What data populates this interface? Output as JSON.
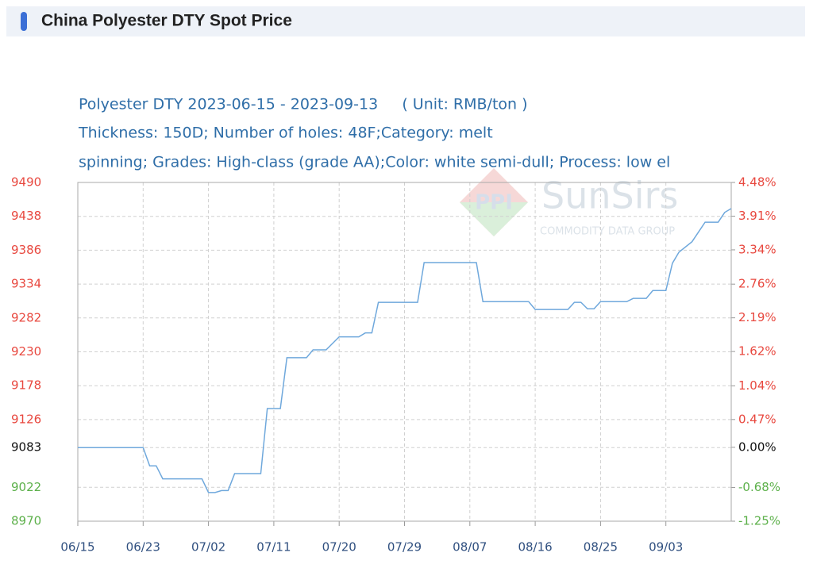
{
  "header": {
    "title": "China Polyester DTY Spot Price"
  },
  "chart_data": {
    "type": "line",
    "subtitle": [
      "Polyester DTY 2023-06-15 - 2023-09-13     ( Unit: RMB/ton )",
      "Thickness: 150D; Number of holes: 48F;Category: melt",
      "spinning; Grades: High-class (grade AA);Color: white semi-dull; Process: low el"
    ],
    "watermark": {
      "logo": "PPI",
      "name": "SunSirs",
      "tagline": "COMMODITY DATA GROUP"
    },
    "xlim": [
      0,
      100
    ],
    "xticks": [
      {
        "value": 0,
        "label": "06/15"
      },
      {
        "value": 10,
        "label": "06/23"
      },
      {
        "value": 20,
        "label": "07/02"
      },
      {
        "value": 30,
        "label": "07/11"
      },
      {
        "value": 40,
        "label": "07/20"
      },
      {
        "value": 50,
        "label": "07/29"
      },
      {
        "value": 60,
        "label": "08/07"
      },
      {
        "value": 70,
        "label": "08/16"
      },
      {
        "value": 80,
        "label": "08/25"
      },
      {
        "value": 90,
        "label": "09/03"
      }
    ],
    "ylim": [
      8970,
      9490
    ],
    "yticks": [
      9490,
      9438,
      9386,
      9334,
      9282,
      9230,
      9178,
      9126,
      9083,
      9022,
      8970
    ],
    "y2lim": [
      -1.25,
      4.48
    ],
    "y2ticks": [
      {
        "value": 4.48,
        "label": "4.48%"
      },
      {
        "value": 3.91,
        "label": "3.91%"
      },
      {
        "value": 3.34,
        "label": "3.34%"
      },
      {
        "value": 2.76,
        "label": "2.76%"
      },
      {
        "value": 2.19,
        "label": "2.19%"
      },
      {
        "value": 1.62,
        "label": "1.62%"
      },
      {
        "value": 1.04,
        "label": "1.04%"
      },
      {
        "value": 0.47,
        "label": "0.47%"
      },
      {
        "value": 0,
        "label": "0.00%"
      },
      {
        "value": -0.68,
        "label": "-0.68%"
      },
      {
        "value": -1.25,
        "label": "-1.25%"
      }
    ],
    "baseline": 9083,
    "tick_colors": {
      "above": "#e8483f",
      "base": "#111111",
      "below": "#5cb04a"
    },
    "grid": true,
    "series": [
      {
        "color": "#6fa8dc",
        "x": [
          0,
          10,
          11,
          12,
          13,
          19,
          20,
          21,
          22,
          23,
          24,
          28,
          29,
          31,
          32,
          35,
          36,
          38,
          40,
          43,
          44,
          45,
          46,
          52,
          53,
          61,
          62,
          69,
          70,
          75,
          76,
          77,
          78,
          79,
          80,
          84,
          85,
          87,
          88,
          90,
          91,
          92,
          94,
          96,
          98,
          99,
          100
        ],
        "values": [
          9083,
          9083,
          9055,
          9055,
          9035,
          9035,
          9014,
          9014,
          9017,
          9017,
          9043,
          9043,
          9143,
          9143,
          9221,
          9221,
          9233,
          9233,
          9253,
          9253,
          9259,
          9259,
          9306,
          9306,
          9367,
          9367,
          9307,
          9307,
          9295,
          9295,
          9306,
          9306,
          9296,
          9296,
          9307,
          9307,
          9312,
          9312,
          9324,
          9324,
          9366,
          9383,
          9399,
          9429,
          9429,
          9444,
          9450
        ]
      }
    ]
  }
}
